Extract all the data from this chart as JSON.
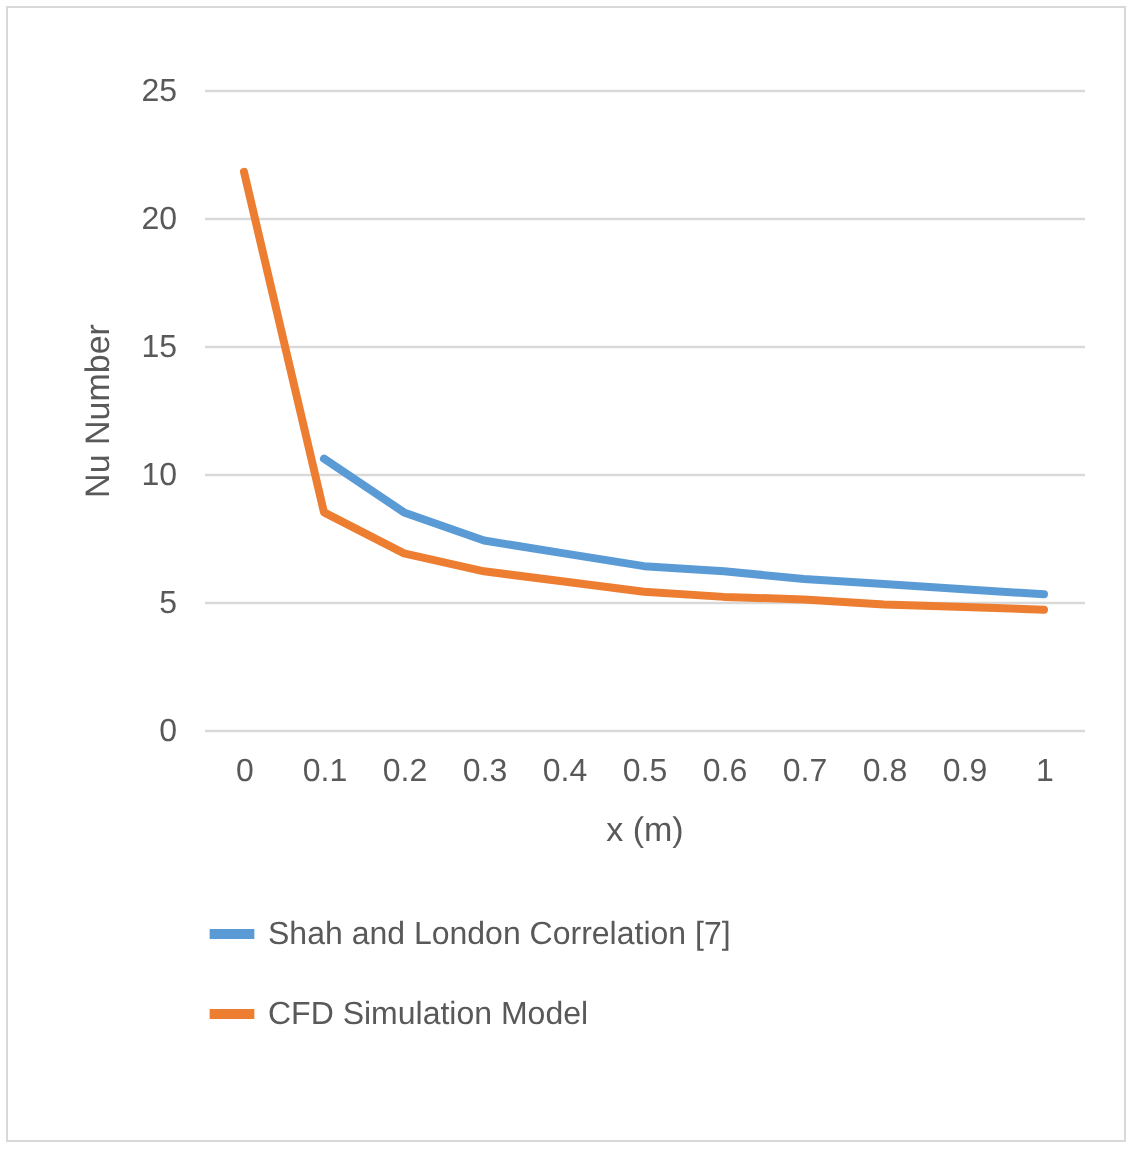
{
  "chart_data": {
    "type": "line",
    "xlabel": "x (m)",
    "ylabel": "Nu Number",
    "categories": [
      "0",
      "0.1",
      "0.2",
      "0.3",
      "0.4",
      "0.5",
      "0.6",
      "0.7",
      "0.8",
      "0.9",
      "1"
    ],
    "series": [
      {
        "name": "Shah and London Correlation [7]",
        "color": "#5b9bd5",
        "values": [
          null,
          10.6,
          8.5,
          7.4,
          6.9,
          6.4,
          6.2,
          5.9,
          5.7,
          5.5,
          5.3
        ]
      },
      {
        "name": "CFD Simulation Model",
        "color": "#ed7d31",
        "values": [
          21.8,
          8.5,
          6.9,
          6.2,
          5.8,
          5.4,
          5.2,
          5.1,
          4.9,
          4.8,
          4.7
        ]
      }
    ],
    "ylim": [
      0,
      25
    ],
    "yticks": [
      0,
      5,
      10,
      15,
      20,
      25
    ],
    "grid": "y",
    "legend": "bottom",
    "marker": "none",
    "line_style": "solid"
  }
}
